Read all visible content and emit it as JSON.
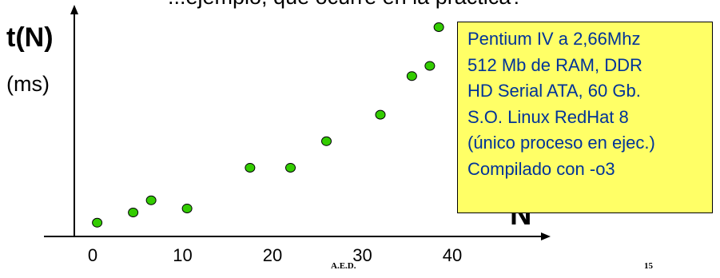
{
  "header": {
    "partial_title": "...ejemplo, qué ocurre en la práctica?"
  },
  "chart_data": {
    "type": "scatter",
    "title": "",
    "ylabel": "t(N)",
    "yunit": "(ms)",
    "xlabel": "N",
    "xticks": [
      0,
      10,
      20,
      30,
      40
    ],
    "xlim": [
      0,
      50
    ],
    "ylim": [
      0,
      100
    ],
    "point_color": "#33cc00",
    "points": [
      {
        "x": 0.5,
        "y": 4
      },
      {
        "x": 4.5,
        "y": 9
      },
      {
        "x": 6.5,
        "y": 15
      },
      {
        "x": 10.5,
        "y": 11
      },
      {
        "x": 17.5,
        "y": 31
      },
      {
        "x": 22,
        "y": 31
      },
      {
        "x": 26,
        "y": 44
      },
      {
        "x": 32,
        "y": 57
      },
      {
        "x": 35.5,
        "y": 76
      },
      {
        "x": 37.5,
        "y": 81
      },
      {
        "x": 38.5,
        "y": 100
      }
    ]
  },
  "info_box": {
    "lines": [
      "Pentium IV a 2,66Mhz",
      "512 Mb de RAM, DDR",
      "HD Serial ATA, 60 Gb.",
      "S.O. Linux RedHat 8",
      "(único proceso en ejec.)",
      "Compilado con -o3"
    ],
    "background": "#ffff66",
    "text_color": "#003399"
  },
  "footer": {
    "left": "A.E.D.",
    "right": "15"
  }
}
